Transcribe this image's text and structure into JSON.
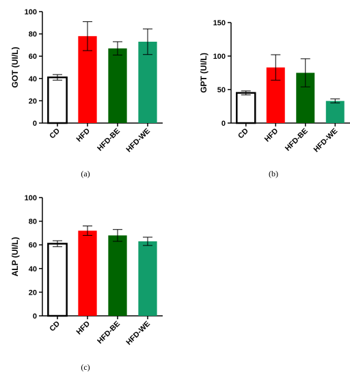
{
  "chart_data": [
    {
      "type": "bar",
      "panel": "(a)",
      "ylabel": "GOT (UI/L)",
      "categories": [
        "CD",
        "HFD",
        "HFD-BE",
        "HFD-WE"
      ],
      "values": [
        41,
        78,
        67,
        73
      ],
      "errors": [
        2.5,
        13,
        6,
        11.5
      ],
      "ylim": [
        0,
        100
      ],
      "yticks": [
        0,
        20,
        40,
        60,
        80,
        100
      ],
      "colors": [
        "#ffffff",
        "#ff0000",
        "#006400",
        "#129d6b"
      ],
      "grid": false
    },
    {
      "type": "bar",
      "panel": "(b)",
      "ylabel": "GPT (UI/L)",
      "categories": [
        "CD",
        "HFD",
        "HFD-BE",
        "HFD-WE"
      ],
      "values": [
        45,
        83,
        75,
        33
      ],
      "errors": [
        3,
        19,
        21,
        3
      ],
      "ylim": [
        0,
        150
      ],
      "yticks": [
        0,
        50,
        100,
        150
      ],
      "colors": [
        "#ffffff",
        "#ff0000",
        "#006400",
        "#129d6b"
      ],
      "grid": false
    },
    {
      "type": "bar",
      "panel": "(c)",
      "ylabel": "ALP (UI/L)",
      "categories": [
        "CD",
        "HFD",
        "HFD-BE",
        "HFD-WE"
      ],
      "values": [
        61,
        72,
        68,
        63
      ],
      "errors": [
        2.5,
        4,
        5,
        3.5
      ],
      "ylim": [
        0,
        100
      ],
      "yticks": [
        0,
        20,
        40,
        60,
        80,
        100
      ],
      "colors": [
        "#ffffff",
        "#ff0000",
        "#006400",
        "#129d6b"
      ],
      "grid": false
    }
  ]
}
